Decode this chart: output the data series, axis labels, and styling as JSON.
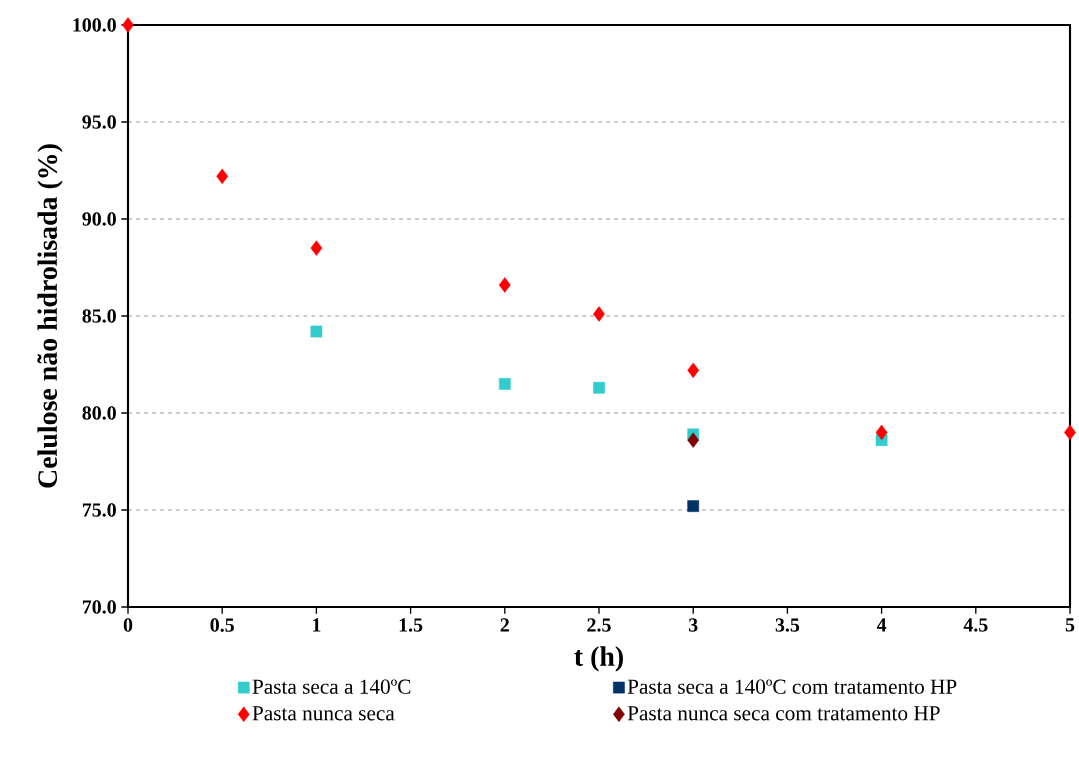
{
  "chart_data": {
    "type": "scatter",
    "xlabel": "t (h)",
    "ylabel": "Celulose não hidrolisada (%)",
    "xlim": [
      0,
      5
    ],
    "xticks": [
      0,
      0.5,
      1,
      1.5,
      2,
      2.5,
      3,
      3.5,
      4,
      4.5,
      5
    ],
    "ylim": [
      70,
      100
    ],
    "yticks": [
      {
        "value": 70,
        "label": "70.0"
      },
      {
        "value": 75,
        "label": "75.0"
      },
      {
        "value": 80,
        "label": "80.0"
      },
      {
        "value": 85,
        "label": "85.0"
      },
      {
        "value": 90,
        "label": "90.0"
      },
      {
        "value": 95,
        "label": "95.0"
      },
      {
        "value": 100,
        "label": "100.0"
      }
    ],
    "grid": "y",
    "legend": "bottom",
    "series": [
      {
        "name": "Pasta seca a 140ºC",
        "color": "#33cccc",
        "marker": "square",
        "x": [
          1,
          2,
          2.5,
          3,
          4
        ],
        "values": [
          84.2,
          81.5,
          81.3,
          78.9,
          78.6
        ]
      },
      {
        "name": "Pasta seca a 140ºC com tratamento HP",
        "color": "#003366",
        "marker": "square",
        "x": [
          3
        ],
        "values": [
          75.2
        ]
      },
      {
        "name": "Pasta nunca seca",
        "color": "#ff0000",
        "marker": "diamond",
        "x": [
          0,
          0.5,
          1,
          2,
          2.5,
          3,
          4,
          5
        ],
        "values": [
          100,
          92.2,
          88.5,
          86.6,
          85.1,
          82.2,
          79.0,
          79.0
        ]
      },
      {
        "name": "Pasta nunca seca com tratamento HP",
        "color": "#800000",
        "marker": "diamond",
        "x": [
          3
        ],
        "values": [
          78.6
        ]
      }
    ]
  }
}
